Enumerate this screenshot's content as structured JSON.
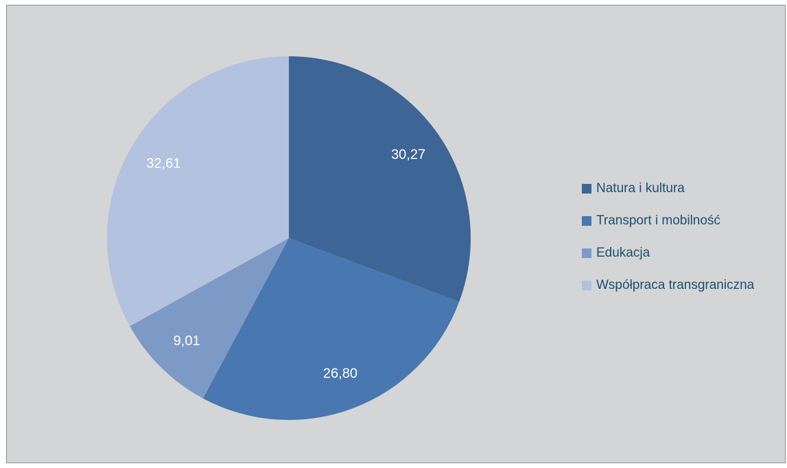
{
  "chart_data": {
    "type": "pie",
    "categories": [
      "Natura i kultura",
      "Transport i mobilność",
      "Edukacja",
      "Współpraca transgraniczna"
    ],
    "values": [
      30.27,
      26.8,
      9.01,
      32.61
    ],
    "value_labels": [
      "30,27",
      "26,80",
      "9,01",
      "32,61"
    ],
    "colors": [
      "#3d6595",
      "#4977b0",
      "#7d9ac7",
      "#b3c2de"
    ],
    "legend": "right"
  }
}
